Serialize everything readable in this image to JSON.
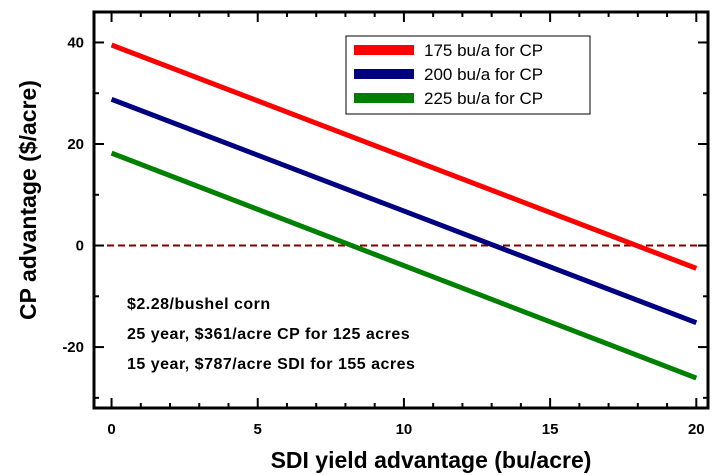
{
  "chart_data": {
    "type": "line",
    "xlabel": "SDI yield advantage (bu/acre)",
    "ylabel": "CP advantage ($/acre)",
    "xlim": [
      -0.6,
      20.4
    ],
    "ylim": [
      -32,
      46
    ],
    "xticks": [
      0,
      5,
      10,
      15,
      20
    ],
    "yticks": [
      -20,
      0,
      20,
      40
    ],
    "grid": false,
    "legend_position": "top-right",
    "series": [
      {
        "name": "175 bu/a for CP",
        "color": "#ff0000",
        "x": [
          0,
          20
        ],
        "y": [
          39.5,
          -4.5
        ]
      },
      {
        "name": "200 bu/a for CP",
        "color": "#000080",
        "x": [
          0,
          20
        ],
        "y": [
          28.8,
          -15.2
        ]
      },
      {
        "name": "225 bu/a for CP",
        "color": "#008000",
        "x": [
          0,
          20
        ],
        "y": [
          18.2,
          -26.1
        ]
      }
    ],
    "reference_line": {
      "y": 0,
      "color": "#800000",
      "style": "dashed"
    },
    "annotations": [
      "$2.28/bushel corn",
      "25 year, $361/acre CP for 125 acres",
      "15 year, $787/acre SDI for 155 acres"
    ]
  }
}
